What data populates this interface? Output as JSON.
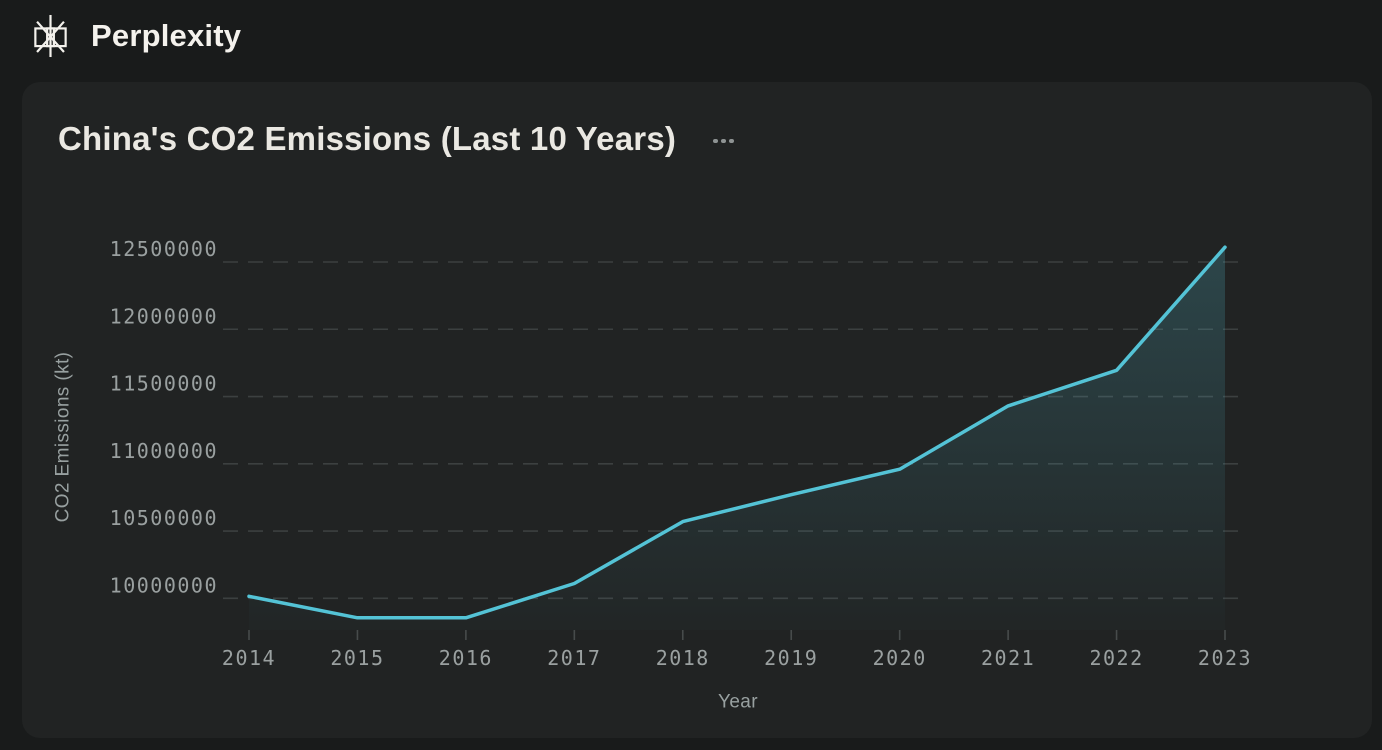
{
  "app": {
    "brand": "Perplexity",
    "logo_icon": "perplexity-asterisk-logo"
  },
  "card": {
    "title": "China's CO2 Emissions (Last 10 Years)",
    "more_options_icon": "ellipsis-horizontal"
  },
  "chart_data": {
    "type": "area",
    "title": "China's CO2 Emissions (Last 10 Years)",
    "xlabel": "Year",
    "ylabel": "CO2 Emissions (kt)",
    "categories": [
      "2014",
      "2015",
      "2016",
      "2017",
      "2018",
      "2019",
      "2020",
      "2021",
      "2022",
      "2023"
    ],
    "series": [
      {
        "name": "CO2 Emissions (kt)",
        "values": [
          10015000,
          9855000,
          9855000,
          10110000,
          10570000,
          10770000,
          10960000,
          11430000,
          11695000,
          12610000
        ]
      }
    ],
    "yticks": [
      10000000,
      10500000,
      11000000,
      11500000,
      12000000,
      12500000
    ],
    "ylim": [
      9760000,
      12700000
    ],
    "grid": "horizontal-dashed",
    "legend": false,
    "area_fill": "vertical gradient fade, hard vertical edge at last point"
  },
  "colors": {
    "background": "#191b1b",
    "card_background": "#212323",
    "line": "#54c3d6",
    "area_top": "#54c3d6",
    "grid": "#3c4040",
    "tick_mark": "#474b4b",
    "tick_text": "#9aa0a0",
    "axis_title_text": "#98a0a0",
    "card_title_text": "#eae8e2",
    "brand_text": "#f4f2ed"
  }
}
